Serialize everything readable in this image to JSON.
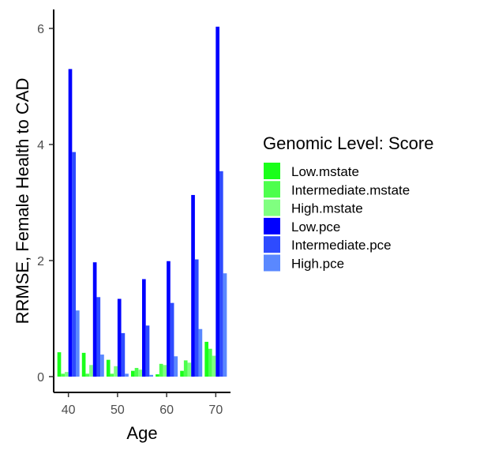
{
  "chart_data": {
    "type": "bar",
    "xlabel": "Age",
    "ylabel": "RRMSE, Female Health to CAD",
    "ylim": [
      0,
      6.3
    ],
    "xlim": [
      37,
      73
    ],
    "x_ticks": [
      40,
      50,
      60,
      70
    ],
    "x_tick_labels": [
      "40",
      "50",
      "60",
      "70"
    ],
    "y_ticks": [
      0,
      2,
      4,
      6
    ],
    "y_tick_labels": [
      "0",
      "2",
      "4",
      "6"
    ],
    "grid": false,
    "legend": {
      "title": "Genomic Level: Score",
      "position": "right"
    },
    "x": [
      40,
      45,
      50,
      55,
      60,
      65,
      70
    ],
    "series": [
      {
        "name": "Low.mstate",
        "color": "#1AFF1A",
        "values": [
          0.42,
          0.41,
          0.29,
          0.1,
          0.04,
          0.1,
          0.6
        ]
      },
      {
        "name": "Intermediate.mstate",
        "color": "#4DFF4D",
        "values": [
          0.05,
          0.05,
          0.05,
          0.15,
          0.22,
          0.28,
          0.48
        ]
      },
      {
        "name": "High.mstate",
        "color": "#80FF80",
        "values": [
          0.08,
          0.2,
          0.18,
          0.12,
          0.2,
          0.24,
          0.36
        ]
      },
      {
        "name": "Low.pce",
        "color": "#0000FF",
        "values": [
          5.3,
          1.97,
          1.34,
          1.68,
          1.99,
          3.13,
          6.03
        ]
      },
      {
        "name": "Intermediate.pce",
        "color": "#2E4BFF",
        "values": [
          3.87,
          1.37,
          0.75,
          0.88,
          1.27,
          2.02,
          3.54
        ]
      },
      {
        "name": "High.pce",
        "color": "#5A88FF",
        "values": [
          1.14,
          0.38,
          0.05,
          0.03,
          0.35,
          0.82,
          1.78
        ]
      }
    ]
  }
}
